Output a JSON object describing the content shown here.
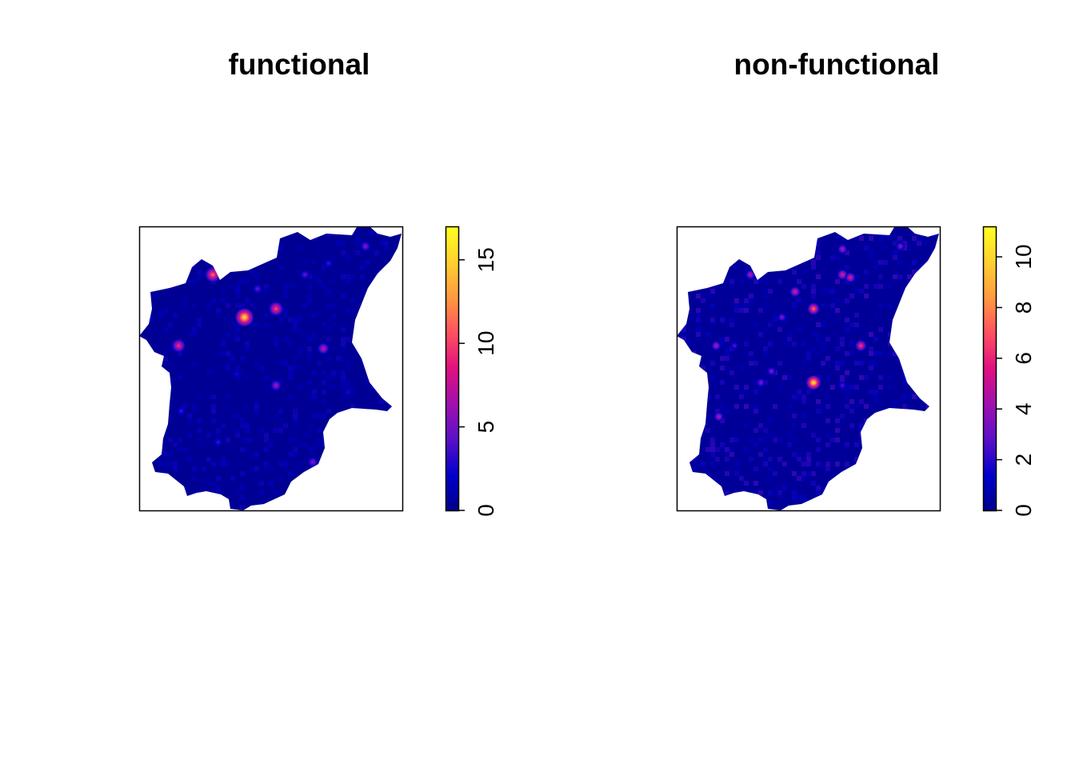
{
  "chart_data": [
    {
      "type": "heatmap",
      "title": "functional",
      "xlabel": "",
      "ylabel": "",
      "axes_shown": false,
      "grid": false,
      "legend": {
        "type": "colorbar",
        "placement": "right",
        "range": [
          0,
          17
        ],
        "ticks": [
          "0",
          "5",
          "10",
          "15"
        ],
        "tick_values": [
          0,
          5,
          10,
          15
        ],
        "tick_label_orientation": "rotated-90"
      },
      "colormap": [
        "#00008b",
        "#0000cc",
        "#5a10c8",
        "#a010b0",
        "#e01080",
        "#ff5060",
        "#ff9a40",
        "#ffd030",
        "#ffff20"
      ],
      "background_value": 0.3,
      "hotspots": [
        {
          "x": 0.28,
          "y": 0.83,
          "value": 12
        },
        {
          "x": 0.4,
          "y": 0.68,
          "value": 16
        },
        {
          "x": 0.52,
          "y": 0.71,
          "value": 11
        },
        {
          "x": 0.15,
          "y": 0.58,
          "value": 10
        },
        {
          "x": 0.7,
          "y": 0.57,
          "value": 8
        },
        {
          "x": 0.52,
          "y": 0.44,
          "value": 7
        },
        {
          "x": 0.66,
          "y": 0.17,
          "value": 6
        },
        {
          "x": 0.86,
          "y": 0.93,
          "value": 6
        },
        {
          "x": 0.45,
          "y": 0.78,
          "value": 5
        },
        {
          "x": 0.63,
          "y": 0.83,
          "value": 5
        },
        {
          "x": 0.3,
          "y": 0.24,
          "value": 4
        },
        {
          "x": 0.16,
          "y": 0.35,
          "value": 4
        },
        {
          "x": 0.72,
          "y": 0.87,
          "value": 4
        },
        {
          "x": 0.37,
          "y": 0.48,
          "value": 3
        }
      ]
    },
    {
      "type": "heatmap",
      "title": "non-functional",
      "xlabel": "",
      "ylabel": "",
      "axes_shown": false,
      "grid": false,
      "legend": {
        "type": "colorbar",
        "placement": "right",
        "range": [
          0,
          11.2
        ],
        "ticks": [
          "0",
          "2",
          "4",
          "6",
          "8",
          "10"
        ],
        "tick_values": [
          0,
          2,
          4,
          6,
          8,
          10
        ],
        "tick_label_orientation": "rotated-90"
      },
      "colormap": [
        "#00008b",
        "#0000cc",
        "#5a10c8",
        "#a010b0",
        "#e01080",
        "#ff5060",
        "#ff9a40",
        "#ffd030",
        "#ffff20"
      ],
      "background_value": 0.3,
      "hotspots": [
        {
          "x": 0.52,
          "y": 0.45,
          "value": 11
        },
        {
          "x": 0.52,
          "y": 0.71,
          "value": 8
        },
        {
          "x": 0.7,
          "y": 0.58,
          "value": 7
        },
        {
          "x": 0.63,
          "y": 0.83,
          "value": 6
        },
        {
          "x": 0.66,
          "y": 0.82,
          "value": 6
        },
        {
          "x": 0.45,
          "y": 0.77,
          "value": 6
        },
        {
          "x": 0.28,
          "y": 0.83,
          "value": 5
        },
        {
          "x": 0.63,
          "y": 0.92,
          "value": 5
        },
        {
          "x": 0.4,
          "y": 0.68,
          "value": 4
        },
        {
          "x": 0.15,
          "y": 0.58,
          "value": 5
        },
        {
          "x": 0.16,
          "y": 0.33,
          "value": 5
        },
        {
          "x": 0.36,
          "y": 0.49,
          "value": 4
        },
        {
          "x": 0.32,
          "y": 0.45,
          "value": 4
        },
        {
          "x": 0.85,
          "y": 0.93,
          "value": 4
        },
        {
          "x": 0.63,
          "y": 0.44,
          "value": 3
        },
        {
          "x": 0.22,
          "y": 0.58,
          "value": 3
        }
      ]
    }
  ]
}
